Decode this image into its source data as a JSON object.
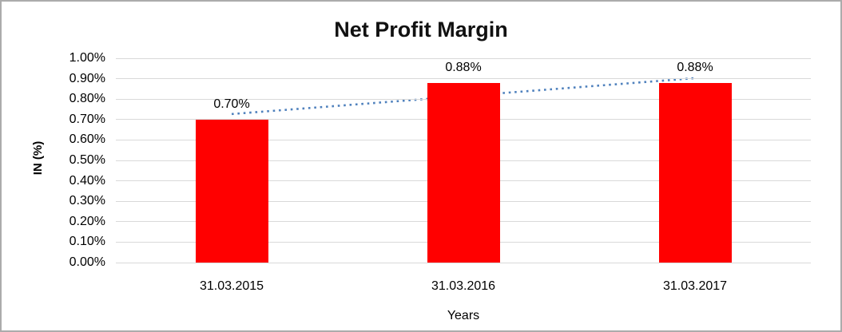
{
  "window": {
    "border_color": "#ababab",
    "background": "#ffffff"
  },
  "chart_data": {
    "type": "bar",
    "title": "Net Profit Margin",
    "xlabel": "Years",
    "ylabel": "IN (%)",
    "categories": [
      "31.03.2015",
      "31.03.2016",
      "31.03.2017"
    ],
    "values": [
      0.7,
      0.88,
      0.88
    ],
    "value_labels": [
      "0.70%",
      "0.88%",
      "0.88%"
    ],
    "y_ticks": [
      "0.00%",
      "0.10%",
      "0.20%",
      "0.30%",
      "0.40%",
      "0.50%",
      "0.60%",
      "0.70%",
      "0.80%",
      "0.90%",
      "1.00%"
    ],
    "y_tick_values": [
      0.0,
      0.1,
      0.2,
      0.3,
      0.4,
      0.5,
      0.6,
      0.7,
      0.8,
      0.9,
      1.0
    ],
    "ylim": [
      0.0,
      1.0
    ],
    "grid": true,
    "legend": "none",
    "bar_color": "#ff0000",
    "gridline_color": "#d9d9d9",
    "trendline": {
      "type": "linear",
      "style": "dotted",
      "color": "#4f81bd",
      "start_value": 0.727,
      "end_value": 0.902
    }
  }
}
